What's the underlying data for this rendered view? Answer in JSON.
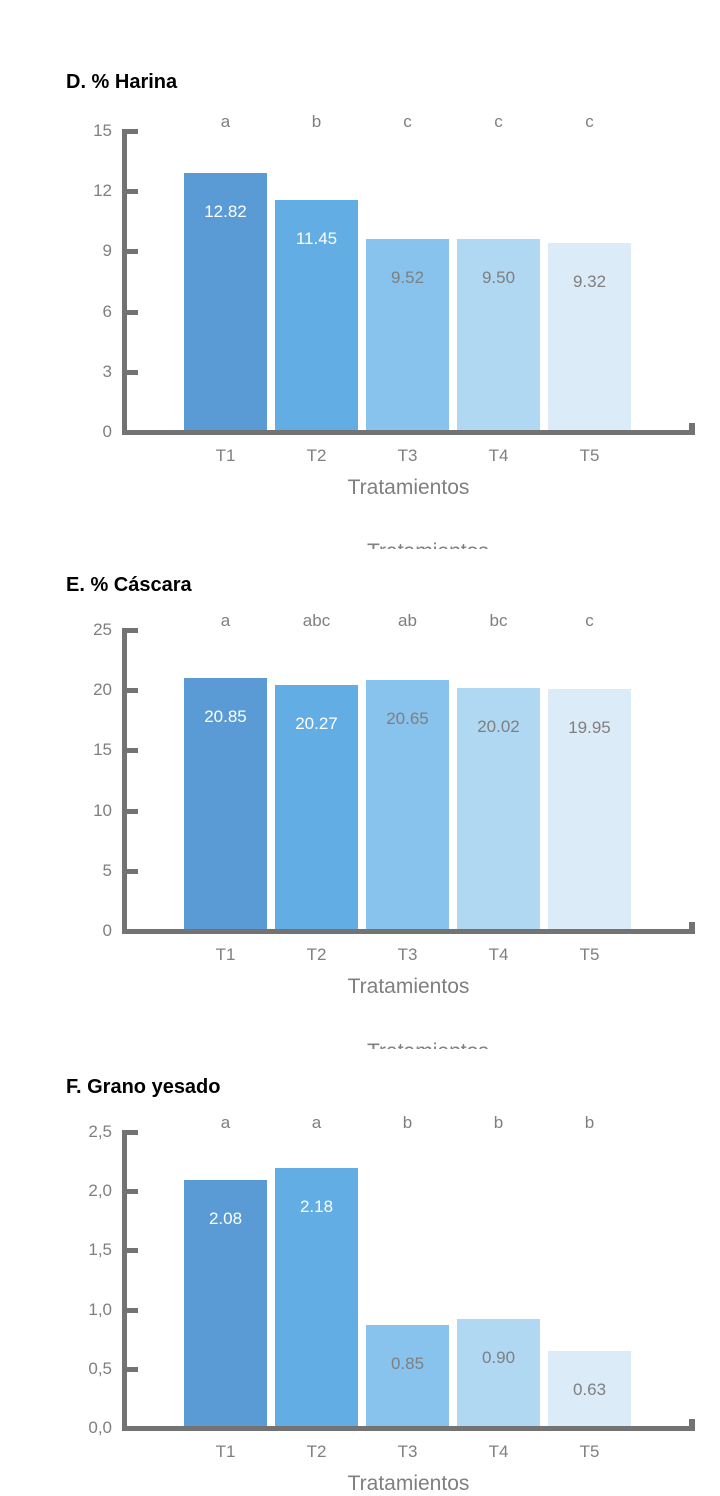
{
  "figure": {
    "clipped_axis_text": "Tratamientos"
  },
  "styles": {
    "title_color": "#000000",
    "text_color": "#7f7f7f",
    "axis_color": "#737373",
    "bar_palette": [
      "#5a9bd5",
      "#62ade3",
      "#87c3ec",
      "#b1d8f3",
      "#dcebf8"
    ],
    "value_label_colors_by_bar": [
      "#ffffff",
      "#ffffff",
      "#7f7f7f",
      "#7f7f7f",
      "#7f7f7f"
    ]
  },
  "chart_data": [
    {
      "type": "bar",
      "panel_label": "D",
      "title": "D. % Harina",
      "categories": [
        "T1",
        "T2",
        "T3",
        "T4",
        "T5"
      ],
      "values": [
        12.82,
        11.45,
        9.52,
        9.5,
        9.32
      ],
      "value_labels": [
        "12.82",
        "11.45",
        "9.52",
        "9.50",
        "9.32"
      ],
      "sig_letters": [
        "a",
        "b",
        "c",
        "c",
        "c"
      ],
      "xlabel": "Tratamientos",
      "ylabel": "",
      "ylim": [
        0,
        15
      ],
      "ytick_values": [
        0,
        3,
        6,
        9,
        12,
        15
      ],
      "ytick_labels": [
        "0",
        "3",
        "6",
        "9",
        "12",
        "15"
      ],
      "grid": false,
      "legend": "none"
    },
    {
      "type": "bar",
      "panel_label": "E",
      "title": "E. % Cáscara",
      "categories": [
        "T1",
        "T2",
        "T3",
        "T4",
        "T5"
      ],
      "values": [
        20.85,
        20.27,
        20.65,
        20.02,
        19.95
      ],
      "value_labels": [
        "20.85",
        "20.27",
        "20.65",
        "20.02",
        "19.95"
      ],
      "sig_letters": [
        "a",
        "abc",
        "ab",
        "bc",
        "c"
      ],
      "xlabel": "Tratamientos",
      "ylabel": "",
      "ylim": [
        0,
        25
      ],
      "ytick_values": [
        0,
        5,
        10,
        15,
        20,
        25
      ],
      "ytick_labels": [
        "0",
        "5",
        "10",
        "15",
        "20",
        "25"
      ],
      "grid": false,
      "legend": "none"
    },
    {
      "type": "bar",
      "panel_label": "F",
      "title": "F. Grano yesado",
      "categories": [
        "T1",
        "T2",
        "T3",
        "T4",
        "T5"
      ],
      "values": [
        2.08,
        2.18,
        0.85,
        0.9,
        0.63
      ],
      "value_labels": [
        "2.08",
        "2.18",
        "0.85",
        "0.90",
        "0.63"
      ],
      "sig_letters": [
        "a",
        "a",
        "b",
        "b",
        "b"
      ],
      "xlabel": "Tratamientos",
      "ylabel": "",
      "ylim": [
        0,
        2.5
      ],
      "ytick_values": [
        0,
        0.5,
        1,
        1.5,
        2,
        2.5
      ],
      "ytick_labels": [
        "0,0",
        "0,5",
        "1,0",
        "1,5",
        "2,0",
        "2,5"
      ],
      "grid": false,
      "legend": "none"
    }
  ]
}
